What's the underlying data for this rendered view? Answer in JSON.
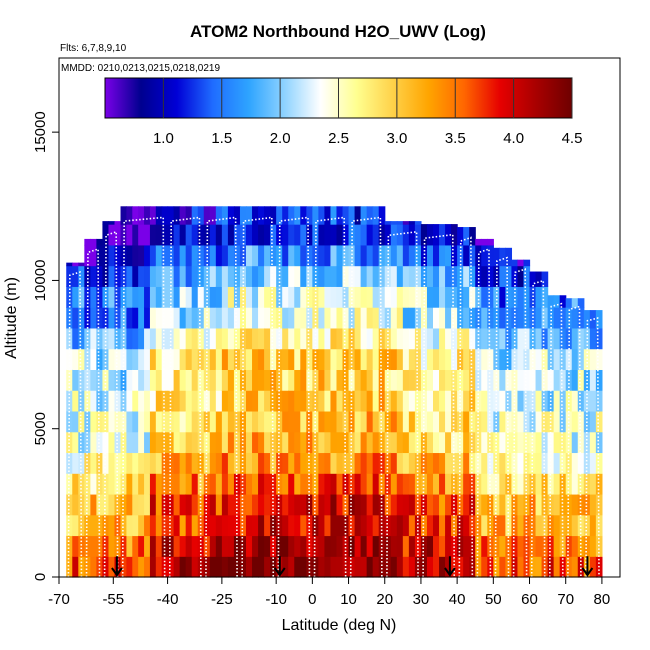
{
  "chart_data": {
    "type": "heatmap",
    "title": "ATOM2 Northbound H2O_UWV (Log)",
    "subtitle_flights": "Flts: 6,7,8,9,10",
    "subtitle_dates": "MMDD: 0210,0213,0215,0218,0219",
    "xlabel": "Latitude (deg N)",
    "ylabel": "Altitude (m)",
    "xlim": [
      -70,
      85
    ],
    "ylim": [
      0,
      17500
    ],
    "x_ticks": [
      -70,
      -55,
      -40,
      -25,
      -10,
      0,
      10,
      20,
      30,
      40,
      50,
      60,
      70,
      80
    ],
    "x_tick_labels": [
      "-70",
      "-55",
      "-40",
      "-25",
      "-10",
      "0",
      "10",
      "20",
      "30",
      "40",
      "50",
      "60",
      "70",
      "80"
    ],
    "y_ticks": [
      0,
      5000,
      10000,
      15000
    ],
    "y_tick_labels": [
      "0",
      "5000",
      "10000",
      "15000"
    ],
    "colorbar": {
      "range": [
        0.5,
        4.5
      ],
      "ticks": [
        1.0,
        1.5,
        2.0,
        2.5,
        3.0,
        3.5,
        4.0,
        4.5
      ],
      "tick_labels": [
        "1.0",
        "1.5",
        "2.0",
        "2.5",
        "3.0",
        "3.5",
        "4.0",
        "4.5"
      ],
      "palette": [
        "#7a00e8",
        "#00008f",
        "#0000d6",
        "#1f6cff",
        "#2ea4ff",
        "#8fd3ff",
        "#ffffff",
        "#ffff90",
        "#ffd24a",
        "#ffa500",
        "#ff6600",
        "#e60000",
        "#a80000",
        "#6e0000"
      ]
    },
    "profiles_columns": [
      {
        "lat_min": -68,
        "lat_max": -63,
        "top": 10600
      },
      {
        "lat_min": -63,
        "lat_max": -58,
        "top": 11400
      },
      {
        "lat_min": -58,
        "lat_max": -53,
        "top": 12000
      },
      {
        "lat_min": -53,
        "lat_max": -40,
        "top": 12500
      },
      {
        "lat_min": -40,
        "lat_max": -30,
        "top": 12500
      },
      {
        "lat_min": -30,
        "lat_max": -20,
        "top": 12500
      },
      {
        "lat_min": -20,
        "lat_max": -10,
        "top": 12500
      },
      {
        "lat_min": -10,
        "lat_max": 0,
        "top": 12500
      },
      {
        "lat_min": 0,
        "lat_max": 10,
        "top": 12500
      },
      {
        "lat_min": 10,
        "lat_max": 20,
        "top": 12500
      },
      {
        "lat_min": 20,
        "lat_max": 30,
        "top": 12000
      },
      {
        "lat_min": 30,
        "lat_max": 40,
        "top": 11900
      },
      {
        "lat_min": 40,
        "lat_max": 45,
        "top": 11800
      },
      {
        "lat_min": 45,
        "lat_max": 50,
        "top": 11400
      },
      {
        "lat_min": 50,
        "lat_max": 55,
        "top": 11100
      },
      {
        "lat_min": 55,
        "lat_max": 60,
        "top": 10700
      },
      {
        "lat_min": 60,
        "lat_max": 65,
        "top": 10300
      },
      {
        "lat_min": 65,
        "lat_max": 70,
        "top": 9500
      },
      {
        "lat_min": 70,
        "lat_max": 75,
        "top": 9400
      },
      {
        "lat_min": 75,
        "lat_max": 80,
        "top": 9000
      }
    ],
    "altitude_bands": [
      {
        "alt": 500,
        "value": 4.2
      },
      {
        "alt": 1500,
        "value": 4.0
      },
      {
        "alt": 2500,
        "value": 3.7
      },
      {
        "alt": 3500,
        "value": 3.4
      },
      {
        "alt": 4500,
        "value": 3.1
      },
      {
        "alt": 5500,
        "value": 2.9
      },
      {
        "alt": 6500,
        "value": 2.8
      },
      {
        "alt": 7500,
        "value": 2.7
      },
      {
        "alt": 8500,
        "value": 2.4
      },
      {
        "alt": 9500,
        "value": 2.1
      },
      {
        "alt": 10500,
        "value": 1.8
      },
      {
        "alt": 11500,
        "value": 1.4
      },
      {
        "alt": 12300,
        "value": 1.0
      }
    ],
    "arrow_markers_lat": [
      -54,
      -9,
      38,
      76
    ]
  }
}
